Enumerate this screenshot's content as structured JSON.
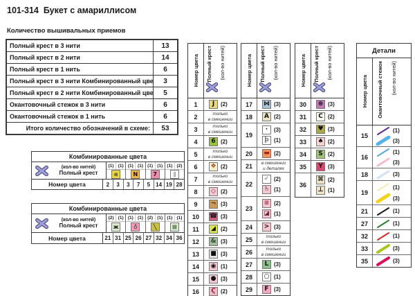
{
  "title": "101-314  Букет с амариллисом",
  "subtitle": "Количество вышивальных приемов",
  "accent_color": "#9d9dd8",
  "labels": {
    "number": "Номер цвета",
    "full_cross": "Полный крест",
    "threads": "(кол-во нитей)",
    "edge_stitch": "Окантовочный стежок",
    "details": "Детали",
    "combined": "Комбинированные цвета",
    "mix_only": "только\nв смешении",
    "mix_details": "в смешении\nи деталях"
  },
  "summary": {
    "rows": [
      {
        "label": "Полный крест в 3 нити",
        "value": "13"
      },
      {
        "label": "Полный крест в 2 нити",
        "value": "14"
      },
      {
        "label": "Полный крест в 1 нить",
        "value": "6"
      },
      {
        "label": "Полный крест в 3 нити Комбинированный цвет",
        "value": "3"
      },
      {
        "label": "Полный крест в 2 нити Комбинированный цвет",
        "value": "5"
      },
      {
        "label": "Окантовочный стежок в 3 нити",
        "value": "6"
      },
      {
        "label": "Окантовочный стежок в 1 нить",
        "value": "6"
      },
      {
        "label": "Итого количество обозначений в схеме:",
        "value": "53",
        "total": true
      }
    ]
  },
  "combined_tables": [
    {
      "groups": [
        {
          "counts": [
            "(1)",
            "(1)"
          ],
          "symbol": "ɞ",
          "bg": "#e7d24b",
          "fg": "#4a4a14",
          "numbers": [
            "2",
            "3"
          ]
        },
        {
          "counts": [
            "(1)",
            "(1)"
          ],
          "symbol": "N",
          "bg": "#edb34d",
          "fg": "#111111",
          "numbers": [
            "3",
            "7"
          ]
        },
        {
          "counts": [
            "(1)",
            "(1)"
          ],
          "symbol": "7",
          "bg": "#ee8cab",
          "fg": "#111111",
          "numbers": [
            "5",
            "14"
          ]
        },
        {
          "counts": [
            "(1)",
            "(2)"
          ],
          "symbol": "∥",
          "bg": "#ffffff",
          "fg": "#888888",
          "numbers": [
            "19",
            "28"
          ]
        }
      ]
    },
    {
      "groups": [
        {
          "counts": [
            "(2)",
            "(1)"
          ],
          "symbol": "ж",
          "bg": "#dcead2",
          "fg": "#111111",
          "numbers": [
            "21",
            "31"
          ]
        },
        {
          "counts": [
            "(1)",
            "(1)"
          ],
          "symbol": "♁",
          "bg": "#ee9cb4",
          "fg": "#333333",
          "numbers": [
            "25",
            "26"
          ]
        },
        {
          "counts": [
            "(2)",
            "(1)"
          ],
          "symbol": "╲",
          "bg": "#ccc13e",
          "fg": "#111111",
          "numbers": [
            "27",
            "32"
          ]
        },
        {
          "counts": [
            "(1)",
            "(1)"
          ],
          "symbol": "⊠",
          "bg": "#dcead2",
          "fg": "#2a5a2a",
          "numbers": [
            "34",
            "36"
          ]
        }
      ]
    }
  ],
  "cross_columns": [
    {
      "rows": [
        {
          "n": "1",
          "cells": [
            {
              "s": "J",
              "bg": "#ead975",
              "fg": "#111111",
              "c": "(2)"
            }
          ]
        },
        {
          "n": "2",
          "note": "mix_only"
        },
        {
          "n": "3",
          "note": "mix_only"
        },
        {
          "n": "4",
          "cells": [
            {
              "s": "6",
              "bg": "#96c437",
              "fg": "#111111",
              "c": "(2)"
            }
          ]
        },
        {
          "n": "5",
          "note": "mix_only"
        },
        {
          "n": "6",
          "cells": [
            {
              "s": "❖",
              "bg": "#f4efcf",
              "fg": "#9c4a1e",
              "c": "(2)"
            }
          ]
        },
        {
          "n": "7",
          "note": "mix_only"
        },
        {
          "n": "8",
          "cells": [
            {
              "s": "◇",
              "bg": "#f3c6d0",
              "fg": "#a1253c",
              "c": "(2)"
            }
          ]
        },
        {
          "n": "9",
          "cells": [
            {
              "s": "¬",
              "bg": "#cd9a52",
              "fg": "#4a2a0a",
              "c": "(3)"
            }
          ]
        },
        {
          "n": "10",
          "cells": [
            {
              "s": "☎",
              "bg": "#c75c7c",
              "fg": "#111111",
              "c": "(3)"
            }
          ]
        },
        {
          "n": "11",
          "cells": [
            {
              "s": "◢",
              "bg": "#dbe64e",
              "fg": "#111111",
              "c": "(2)"
            }
          ]
        },
        {
          "n": "12",
          "cells": [
            {
              "s": "&",
              "bg": "#a5bca1",
              "fg": "#27492a",
              "c": "(3)"
            }
          ]
        },
        {
          "n": "13",
          "cells": [
            {
              "s": "■",
              "bg": "#e4e4e4",
              "fg": "#111111",
              "c": "(3)"
            }
          ]
        },
        {
          "n": "14",
          "cells": [
            {
              "s": "◉",
              "bg": "#f3c6d0",
              "fg": "#111111",
              "c": "(1)"
            }
          ]
        },
        {
          "n": "15",
          "cells": [
            {
              "s": "●",
              "bg": "#f3c6d0",
              "fg": "#111111",
              "c": "(3)"
            }
          ]
        },
        {
          "n": "16",
          "cells": [
            {
              "s": "Ϛ",
              "bg": "#f2b9c4",
              "fg": "#8f1f3a",
              "c": "(2)"
            }
          ]
        }
      ]
    },
    {
      "rows": [
        {
          "n": "17",
          "cells": [
            {
              "s": "⋈",
              "bg": "#a9c2d8",
              "fg": "#111111",
              "c": "(3)"
            }
          ]
        },
        {
          "n": "18",
          "cells": [
            {
              "s": "A",
              "bg": "#e9e2c4",
              "fg": "#111111",
              "c": "(2)"
            }
          ]
        },
        {
          "n": "19",
          "cells": [
            {
              "s": "·",
              "bg": "#ffffff",
              "fg": "#111111",
              "c": "(3)"
            },
            {
              "s": "þ",
              "bg": "#ffffff",
              "fg": "#777777",
              "c": "(1)"
            }
          ]
        },
        {
          "n": "20",
          "cells": [
            {
              "s": "▬",
              "bg": "#f29260",
              "fg": "#9c2a1e",
              "c": "(2)"
            }
          ]
        },
        {
          "n": "21",
          "note": "mix_details"
        },
        {
          "n": "22",
          "cells": [
            {
              "s": "✓",
              "bg": "#ffffff",
              "fg": "#666666",
              "c": "(2)"
            },
            {
              "s": "♄",
              "bg": "#f3c6d0",
              "fg": "#555555",
              "c": "(1)"
            }
          ]
        },
        {
          "n": "23",
          "cells": [
            {
              "s": "≡",
              "bg": "#f3c6d0",
              "fg": "#a1253c",
              "c": "(2)"
            },
            {
              "s": "◪",
              "bg": "#f3c6d0",
              "fg": "#6b2a3a",
              "c": "(1)"
            }
          ]
        },
        {
          "n": "24",
          "cells": [
            {
              "s": ">",
              "bg": "#f3c6d0",
              "fg": "#111111",
              "c": "(3)"
            }
          ]
        },
        {
          "n": "25",
          "note": "mix_only"
        },
        {
          "n": "26",
          "note": "mix_only"
        },
        {
          "n": "27",
          "cells": [
            {
              "s": "L",
              "bg": "#8fbe8f",
              "fg": "#111111",
              "c": "(3)"
            }
          ]
        },
        {
          "n": "28",
          "cells": [
            {
              "s": "○",
              "bg": "#ffffff",
              "fg": "#111111",
              "c": "(1)"
            }
          ]
        },
        {
          "n": "29",
          "cells": [
            {
              "s": "F",
              "bg": "#f2a9c0",
              "fg": "#111111",
              "c": "(3)"
            }
          ]
        }
      ]
    },
    {
      "rows": [
        {
          "n": "30",
          "cells": [
            {
              "s": "⊛",
              "bg": "#bd7cb5",
              "fg": "#111111",
              "c": "(3)"
            }
          ]
        },
        {
          "n": "31",
          "cells": [
            {
              "s": "C",
              "bg": "#fcfcf0",
              "fg": "#111111",
              "c": "(2)"
            }
          ]
        },
        {
          "n": "32",
          "cells": [
            {
              "s": "♥",
              "bg": "#a8a84e",
              "fg": "#111111",
              "c": "(3)"
            }
          ]
        },
        {
          "n": "33",
          "cells": [
            {
              "s": "♠",
              "bg": "#f6d2d2",
              "fg": "#111111",
              "c": "(2)"
            }
          ]
        },
        {
          "n": "34",
          "cells": [
            {
              "s": "S",
              "bg": "#a2c17c",
              "fg": "#111111",
              "c": "(2)"
            }
          ]
        },
        {
          "n": "35",
          "cells": [
            {
              "s": "Y",
              "bg": "#d44a6e",
              "fg": "#111111",
              "c": "(3)"
            }
          ]
        },
        {
          "n": "36",
          "cells": [
            {
              "s": "⌘",
              "bg": "#eae3c5",
              "fg": "#111111",
              "c": "(2)"
            },
            {
              "s": "⊥",
              "bg": "#eae3c5",
              "fg": "#111111",
              "c": "(1)"
            }
          ]
        }
      ]
    }
  ],
  "details_table": {
    "rows": [
      {
        "n": "15",
        "lines": [
          {
            "color": "#5b2d8e",
            "w": 2,
            "c": "(1)"
          },
          {
            "color": "#58b2e8",
            "w": 5,
            "c": "(3)"
          }
        ]
      },
      {
        "n": "16",
        "lines": [
          {
            "color": "#58a8e0",
            "w": 2,
            "c": "(1)"
          },
          {
            "color": "#f4bcca",
            "w": 3,
            "c": "(3)"
          }
        ]
      },
      {
        "n": "18",
        "lines": [
          {
            "color": "#cfe3f2",
            "w": 3,
            "c": "(3)"
          }
        ]
      },
      {
        "n": "19",
        "lines": [
          {
            "color": "#f2eeb4",
            "w": 2,
            "c": "(1)"
          },
          {
            "color": "#f2d21c",
            "w": 5,
            "c": "(3)"
          }
        ]
      },
      {
        "n": "21",
        "lines": [
          {
            "color": "#1a1a1a",
            "w": 2,
            "c": "(1)"
          }
        ]
      },
      {
        "n": "27",
        "lines": [
          {
            "color": "#2e7d32",
            "w": 2,
            "c": "(1)"
          }
        ]
      },
      {
        "n": "32",
        "lines": [
          {
            "color": "#d62828",
            "w": 2,
            "c": "(1)"
          }
        ]
      },
      {
        "n": "33",
        "lines": [
          {
            "color": "#abc822",
            "w": 4,
            "c": "(3)"
          }
        ]
      },
      {
        "n": "35",
        "lines": [
          {
            "color": "#d6115e",
            "w": 4,
            "c": "(3)"
          }
        ]
      }
    ]
  }
}
